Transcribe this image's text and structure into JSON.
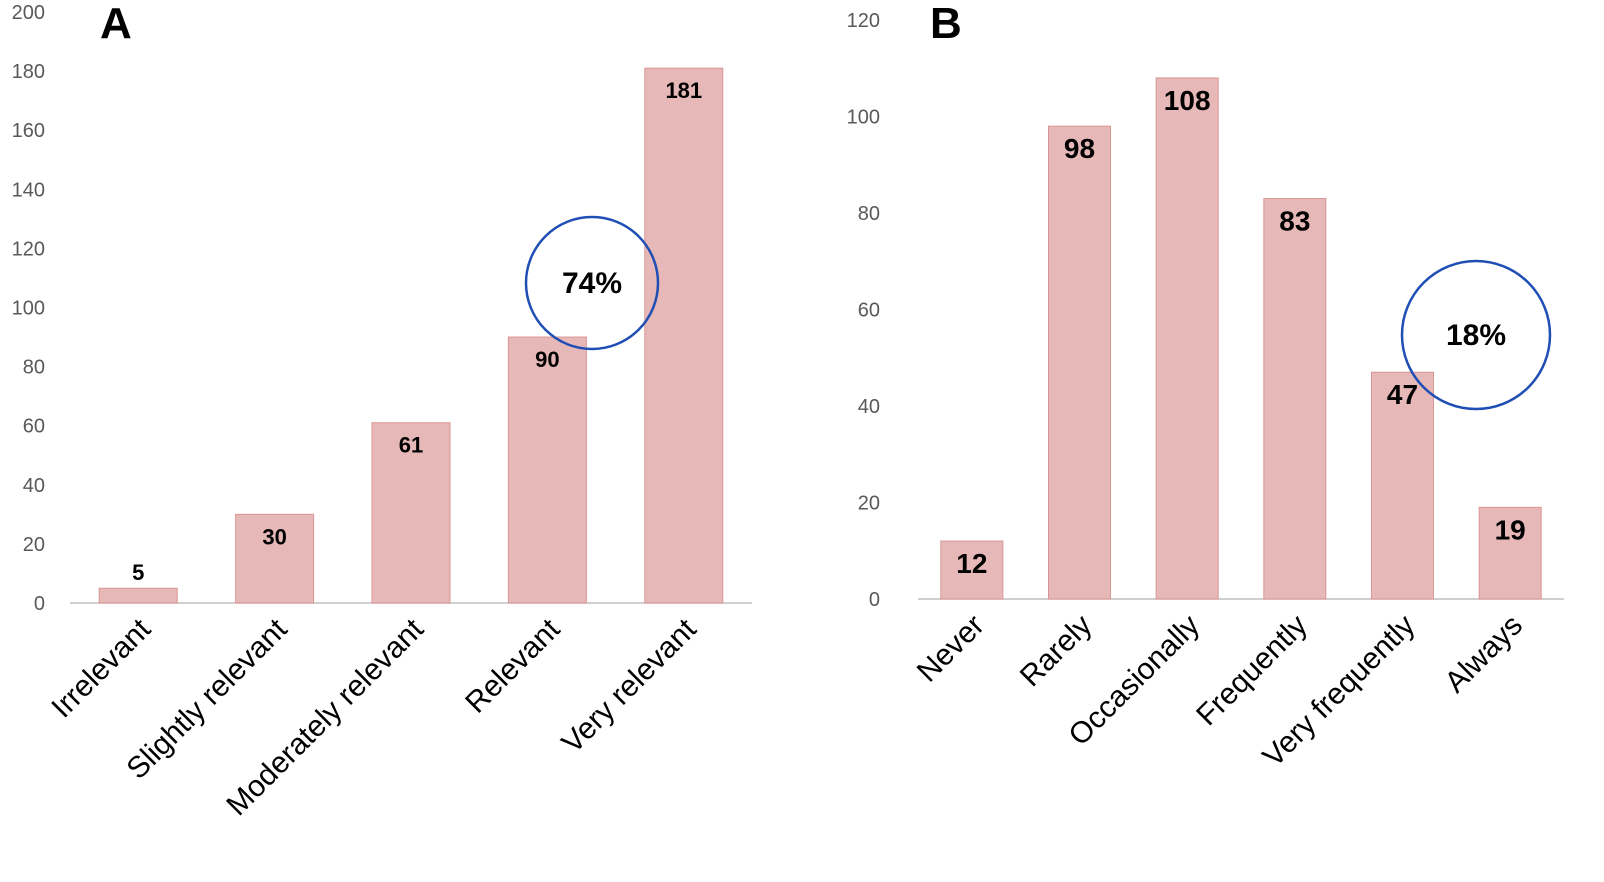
{
  "chart_data": [
    {
      "panel_label": "A",
      "type": "bar",
      "categories": [
        "Irrelevant",
        "Slightly relevant",
        "Moderately relevant",
        "Relevant",
        "Very relevant"
      ],
      "values": [
        5,
        30,
        61,
        90,
        181
      ],
      "value_labels": [
        "5",
        "30",
        "61",
        "90",
        "181"
      ],
      "ylim": [
        0,
        200
      ],
      "yticks": [
        0,
        20,
        40,
        60,
        80,
        100,
        120,
        140,
        160,
        180,
        200
      ],
      "ytick_labels": [
        "0",
        "20",
        "40",
        "60",
        "80",
        "100",
        "120",
        "140",
        "160",
        "180",
        "200"
      ],
      "annotation": {
        "text": "74%",
        "applies_to": [
          "Relevant",
          "Very relevant"
        ],
        "shape": "circle"
      },
      "bar_color": "#e6b8b7",
      "bar_edge_color": "#d99694",
      "annotation_color": "#1f4eb4",
      "grid": false,
      "legend": "none"
    },
    {
      "panel_label": "B",
      "type": "bar",
      "categories": [
        "Never",
        "Rarely",
        "Occasionally",
        "Frequently",
        "Very frequently",
        "Always"
      ],
      "values": [
        12,
        98,
        108,
        83,
        47,
        19
      ],
      "value_labels": [
        "12",
        "98",
        "108",
        "83",
        "47",
        "19"
      ],
      "ylim": [
        0,
        120
      ],
      "yticks": [
        0,
        20,
        40,
        60,
        80,
        100,
        120
      ],
      "ytick_labels": [
        "0",
        "20",
        "40",
        "60",
        "80",
        "100",
        "120"
      ],
      "annotation": {
        "text": "18%",
        "applies_to": [
          "Very frequently",
          "Always"
        ],
        "shape": "circle"
      },
      "bar_color": "#e6b8b7",
      "bar_edge_color": "#d99694",
      "annotation_color": "#1f4eb4",
      "grid": false,
      "legend": "none"
    }
  ]
}
